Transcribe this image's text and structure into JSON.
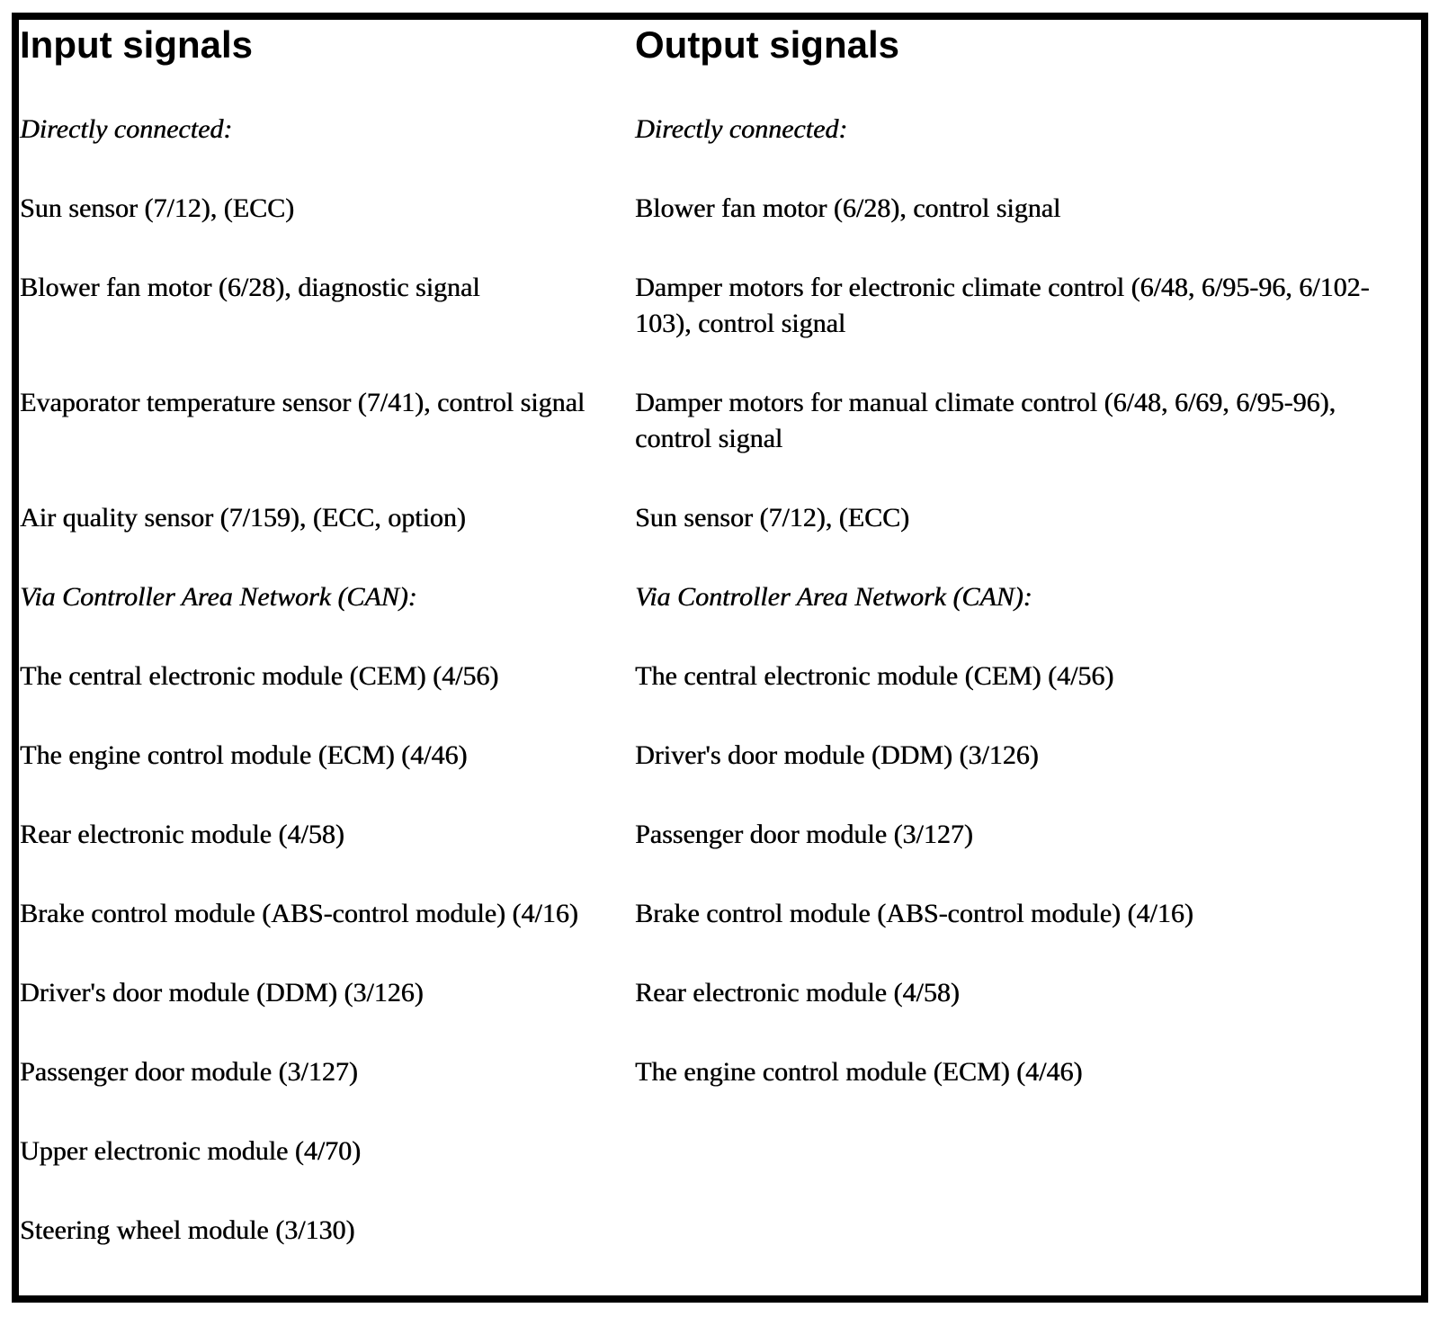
{
  "colors": {
    "background": "#ffffff",
    "border": "#000000",
    "text": "#000000"
  },
  "table": {
    "headers": [
      "Input signals",
      "Output signals"
    ],
    "rows": [
      {
        "left": "Directly connected:",
        "right": "Directly connected:"
      },
      {
        "left": "Sun sensor (7/12), (ECC)",
        "right": "Blower fan motor (6/28), control signal"
      },
      {
        "left": "Blower fan motor (6/28), diagnostic signal",
        "right": "Damper motors for electronic climate control (6/48, 6/95-96, 6/102-103), control signal"
      },
      {
        "left": "Evaporator temperature sensor (7/41), control signal",
        "right": "Damper motors for manual climate control (6/48, 6/69, 6/95-96), control signal"
      },
      {
        "left": "Air quality sensor (7/159), (ECC, option)",
        "right": "Sun sensor (7/12), (ECC)"
      },
      {
        "left": "Via Controller Area Network (CAN):",
        "right": "Via Controller Area Network (CAN):"
      },
      {
        "left": "The central electronic module (CEM) (4/56)",
        "right": "The central electronic module (CEM) (4/56)"
      },
      {
        "left": "The engine control module (ECM) (4/46)",
        "right": "Driver's door module (DDM) (3/126)"
      },
      {
        "left": "Rear electronic module (4/58)",
        "right": "Passenger door module (3/127)"
      },
      {
        "left": "Brake control module (ABS-control module) (4/16)",
        "right": "Brake control module (ABS-control module) (4/16)"
      },
      {
        "left": "Driver's door module (DDM) (3/126)",
        "right": "Rear electronic module (4/58)"
      },
      {
        "left": "Passenger door module (3/127)",
        "right": "The engine control module (ECM) (4/46)"
      },
      {
        "left": "Upper electronic module (4/70)",
        "right": ""
      },
      {
        "left": "Steering wheel module (3/130)",
        "right": ""
      }
    ]
  }
}
